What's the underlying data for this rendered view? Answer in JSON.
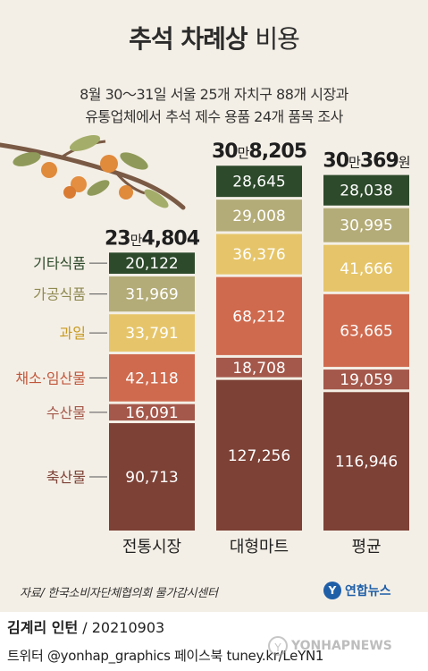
{
  "title": {
    "bold": "추석 차례상",
    "light": "비용"
  },
  "subtitle": [
    "8월 30～31일 서울 25개 자치구 88개 시장과",
    "유통업체에서 추석 제수 용품 24개 품목 조사"
  ],
  "source": "자료/ 한국소비자단체협의회 물가감시센터",
  "logo": {
    "mark": "Y",
    "text": "연합뉴스"
  },
  "credit": {
    "author": "김계리 인턴",
    "date": "/ 20210903"
  },
  "social": "트위터 @yonhap_graphics  페이스북 tuney.kr/LeYN1",
  "watermark": {
    "mark": "Y",
    "text": "YONHAPNEWS"
  },
  "colors": {
    "기타식품": "#2d4a2b",
    "가공식품": "#b4ac78",
    "과일": "#e6c56a",
    "채소·임산물": "#cf6a4e",
    "수산물": "#a4584b",
    "축산물": "#7d4136"
  },
  "label_colors": {
    "기타식품": "#2d4a2b",
    "가공식품": "#8f8a52",
    "과일": "#c79a1f",
    "채소·임산물": "#c0573c",
    "수산물": "#a4584b",
    "축산물": "#7d4136"
  },
  "chart_data": {
    "type": "bar",
    "stacked": true,
    "categories": [
      "전통시장",
      "대형마트",
      "평균"
    ],
    "series": [
      {
        "name": "축산물",
        "values": [
          90713,
          127256,
          116946
        ],
        "labels": [
          "90,713",
          "127,256",
          "116,946"
        ]
      },
      {
        "name": "수산물",
        "values": [
          16091,
          18708,
          19059
        ],
        "labels": [
          "16,091",
          "18,708",
          "19,059"
        ]
      },
      {
        "name": "채소·임산물",
        "values": [
          42118,
          68212,
          63665
        ],
        "labels": [
          "42,118",
          "68,212",
          "63,665"
        ]
      },
      {
        "name": "과일",
        "values": [
          33791,
          36376,
          41666
        ],
        "labels": [
          "33,791",
          "36,376",
          "41,666"
        ]
      },
      {
        "name": "가공식품",
        "values": [
          31969,
          29008,
          30995
        ],
        "labels": [
          "31,969",
          "29,008",
          "30,995"
        ]
      },
      {
        "name": "기타식품",
        "values": [
          20122,
          28645,
          28038
        ],
        "labels": [
          "20,122",
          "28,645",
          "28,038"
        ]
      }
    ],
    "totals": [
      {
        "value": 234804,
        "big1": "23",
        "small1": "만",
        "big2": "4,804",
        "small2": ""
      },
      {
        "value": 308205,
        "big1": "30",
        "small1": "만",
        "big2": "8,205",
        "small2": ""
      },
      {
        "value": 300369,
        "big1": "30",
        "small1": "만",
        "big2": "369",
        "small2": "원"
      }
    ]
  }
}
